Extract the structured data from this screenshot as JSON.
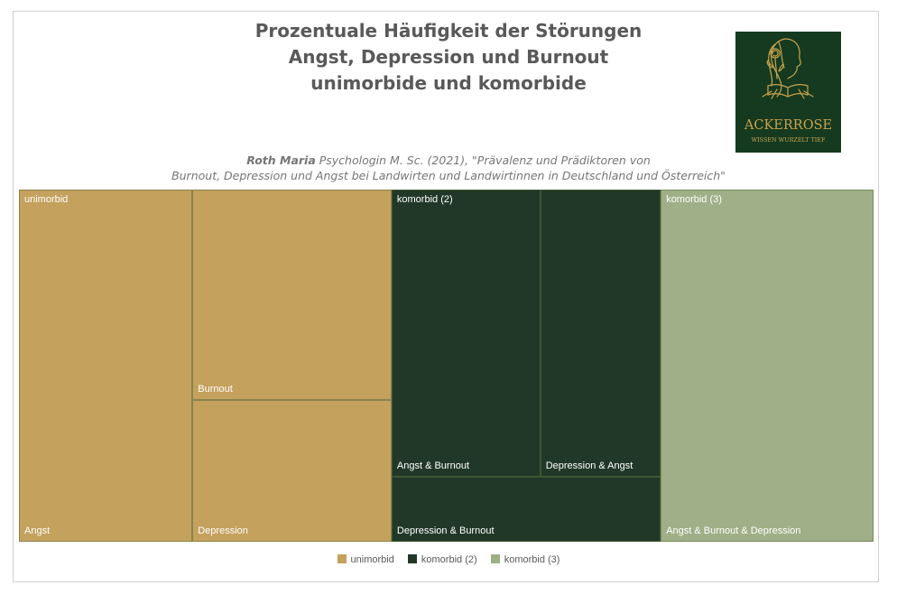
{
  "title": {
    "line1": "Prozentuale Häufigkeit der Störungen",
    "line2": "Angst, Depression und Burnout",
    "line3": "unimorbide und komorbide"
  },
  "subtitle": {
    "author": "Roth Maria",
    "line1_rest": " Psychologin M. Sc. (2021), \"Prävalenz und Prädiktoren von",
    "line2": "Burnout, Depression und Angst bei Landwirten und Landwirtinnen in Deutschland und Österreich\""
  },
  "logo": {
    "name": "ACKERROSE",
    "tagline": "WISSEN WURZELT TIEF",
    "icon": "woman-profile-rose-book-icon",
    "background": "#153a1f",
    "color": "#c9a34f"
  },
  "legend": [
    {
      "label": "unimorbid",
      "color": "#c4a15d"
    },
    {
      "label": "komorbid (2)",
      "color": "#213828"
    },
    {
      "label": "komorbid (3)",
      "color": "#9faf87"
    }
  ],
  "chart_data": {
    "type": "treemap",
    "groups": [
      {
        "name": "unimorbid",
        "color": "#c4a15d",
        "items": [
          {
            "label": "Angst",
            "value": 20.3
          },
          {
            "label": "Burnout",
            "value": 13.9
          },
          {
            "label": "Depression",
            "value": 9.4
          }
        ]
      },
      {
        "name": "komorbid (2)",
        "color": "#213828",
        "items": [
          {
            "label": "Angst & Burnout",
            "value": 14.2
          },
          {
            "label": "Depression & Angst",
            "value": 11.5
          },
          {
            "label": "Depression & Burnout",
            "value": 5.8
          }
        ]
      },
      {
        "name": "komorbid (3)",
        "color": "#9faf87",
        "items": [
          {
            "label": "Angst & Burnout & Depression",
            "value": 24.9
          }
        ]
      }
    ]
  }
}
